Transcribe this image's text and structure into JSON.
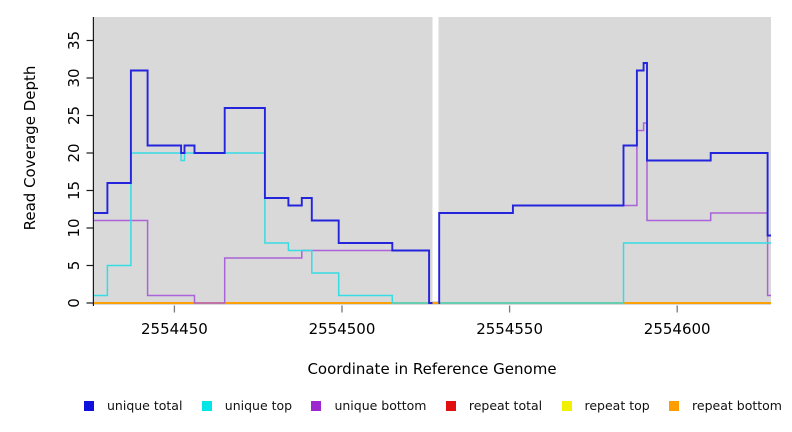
{
  "chart_data": {
    "type": "step-line",
    "title": "",
    "xlabel": "Coordinate in Reference Genome",
    "ylabel": "Read Coverage Depth",
    "xlim": [
      2554426,
      2554628
    ],
    "ylim": [
      0,
      38
    ],
    "x_ticks": [
      2554450,
      2554500,
      2554550,
      2554600
    ],
    "y_ticks": [
      0,
      5,
      10,
      15,
      20,
      25,
      30,
      35
    ],
    "plot_background": "#d9d9d9",
    "grid": "off",
    "legend_position": "bottom",
    "gap": {
      "from": 2554527.0,
      "to": 2554528.8
    },
    "series": [
      {
        "name": "repeat total",
        "color": "#dd1111",
        "segments": [
          [
            2554426,
            2554628,
            0
          ]
        ]
      },
      {
        "name": "repeat top",
        "color": "#f0f000",
        "segments": [
          [
            2554426,
            2554628,
            0
          ]
        ]
      },
      {
        "name": "repeat bottom",
        "color": "#ff9d00",
        "segments": [
          [
            2554426,
            2554628,
            0
          ]
        ]
      },
      {
        "name": "unique bottom",
        "color": "#ab63d9",
        "segments": [
          [
            2554426,
            2554442,
            11
          ],
          [
            2554442,
            2554456,
            1
          ],
          [
            2554456,
            2554465,
            0
          ],
          [
            2554465,
            2554488,
            6
          ],
          [
            2554488,
            2554526,
            7
          ],
          [
            2554526,
            2554527,
            0
          ],
          [
            2554528.8,
            2554529,
            0
          ],
          [
            2554529,
            2554551,
            12
          ],
          [
            2554551,
            2554588,
            13
          ],
          [
            2554588,
            2554590,
            23
          ],
          [
            2554590,
            2554591,
            24
          ],
          [
            2554591,
            2554610,
            11
          ],
          [
            2554610,
            2554627,
            12
          ],
          [
            2554627,
            2554628,
            1
          ]
        ]
      },
      {
        "name": "unique top",
        "color": "#35dce4",
        "segments": [
          [
            2554426,
            2554430,
            1
          ],
          [
            2554430,
            2554437,
            5
          ],
          [
            2554437,
            2554452,
            20
          ],
          [
            2554452,
            2554453,
            19
          ],
          [
            2554453,
            2554477,
            20
          ],
          [
            2554477,
            2554484,
            8
          ],
          [
            2554484,
            2554491,
            7
          ],
          [
            2554491,
            2554499,
            4
          ],
          [
            2554499,
            2554515,
            1
          ],
          [
            2554515,
            2554527,
            0
          ],
          [
            2554528.8,
            2554584,
            0
          ],
          [
            2554584,
            2554628,
            8
          ]
        ]
      },
      {
        "name": "unique total",
        "color": "#2424dd",
        "segments": [
          [
            2554426,
            2554430,
            12
          ],
          [
            2554430,
            2554437,
            16
          ],
          [
            2554437,
            2554442,
            31
          ],
          [
            2554442,
            2554452,
            21
          ],
          [
            2554452,
            2554453,
            20
          ],
          [
            2554453,
            2554456,
            21
          ],
          [
            2554456,
            2554465,
            20
          ],
          [
            2554465,
            2554477,
            26
          ],
          [
            2554477,
            2554484,
            14
          ],
          [
            2554484,
            2554488,
            13
          ],
          [
            2554488,
            2554491,
            14
          ],
          [
            2554491,
            2554499,
            11
          ],
          [
            2554499,
            2554515,
            8
          ],
          [
            2554515,
            2554526,
            7
          ],
          [
            2554526,
            2554527,
            0
          ],
          [
            2554528.8,
            2554529,
            0
          ],
          [
            2554529,
            2554551,
            12
          ],
          [
            2554551,
            2554584,
            13
          ],
          [
            2554584,
            2554588,
            21
          ],
          [
            2554588,
            2554590,
            31
          ],
          [
            2554590,
            2554591,
            32
          ],
          [
            2554591,
            2554610,
            19
          ],
          [
            2554610,
            2554627,
            20
          ],
          [
            2554627,
            2554628,
            9
          ]
        ]
      }
    ],
    "legend": [
      {
        "label": "unique total",
        "color": "#1111dd"
      },
      {
        "label": "unique top",
        "color": "#00e5e5"
      },
      {
        "label": "unique bottom",
        "color": "#9c27cf"
      },
      {
        "label": "repeat total",
        "color": "#e01010"
      },
      {
        "label": "repeat top",
        "color": "#f0f000"
      },
      {
        "label": "repeat bottom",
        "color": "#ff9d00"
      }
    ]
  }
}
